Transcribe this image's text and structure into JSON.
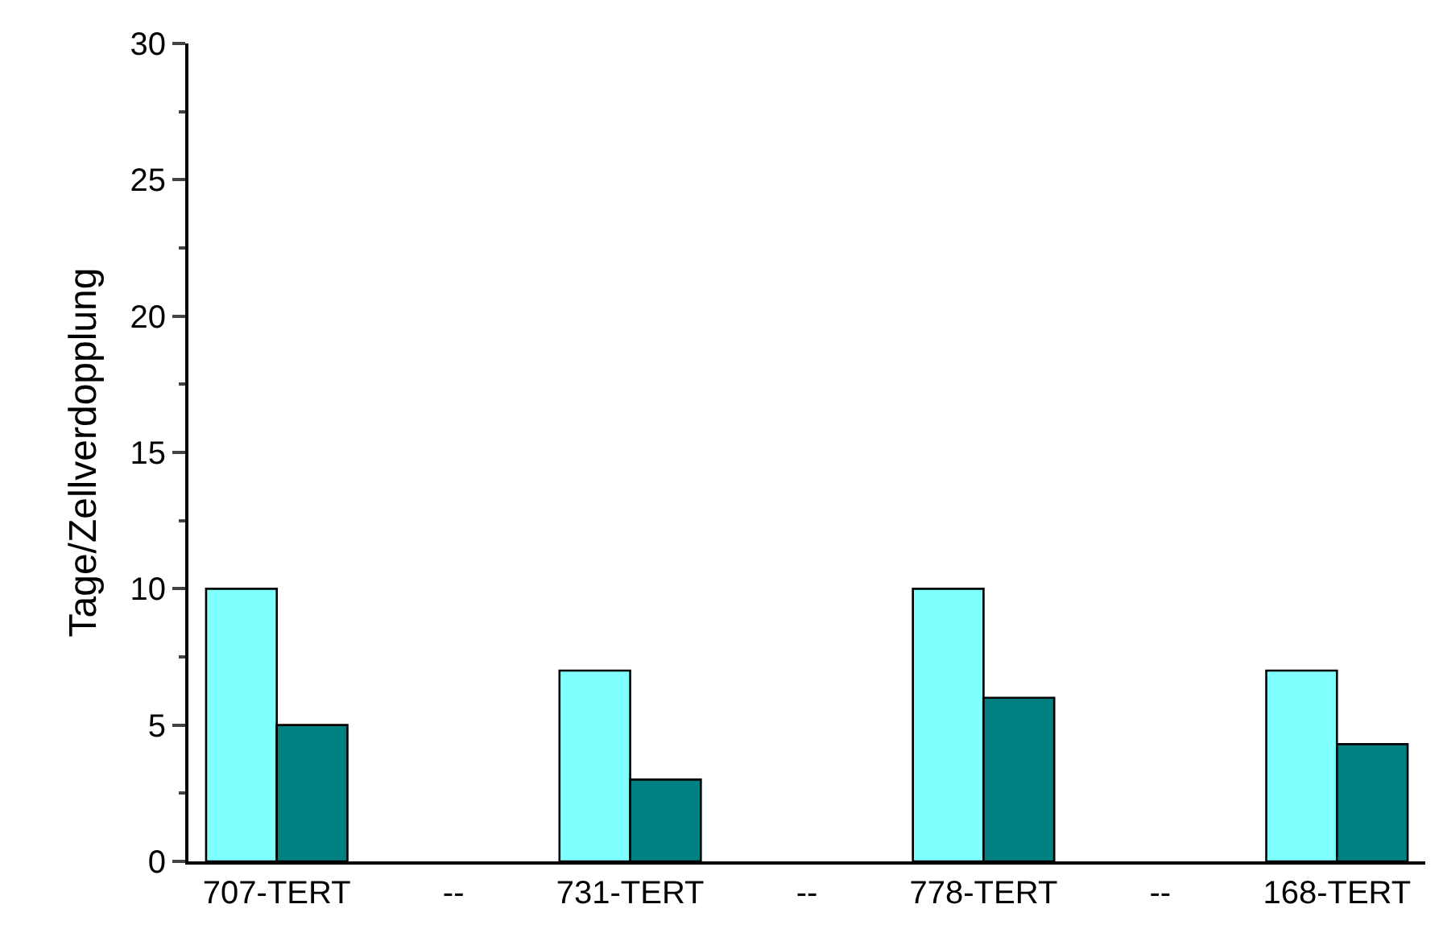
{
  "chart_data": {
    "type": "bar",
    "ylabel": "Tage/Zellverdopplung",
    "categories": [
      "707-TERT",
      "--",
      "731-TERT",
      "--",
      "778-TERT",
      "--",
      "168-TERT"
    ],
    "series": [
      {
        "color": "#80ffff",
        "values": [
          10,
          null,
          7,
          null,
          10,
          null,
          7
        ]
      },
      {
        "color": "#008080",
        "values": [
          5,
          null,
          3,
          null,
          6,
          null,
          4.3
        ]
      }
    ],
    "ylim": [
      0,
      30
    ],
    "yticks": [
      0,
      5,
      10,
      15,
      20,
      25,
      30
    ]
  }
}
